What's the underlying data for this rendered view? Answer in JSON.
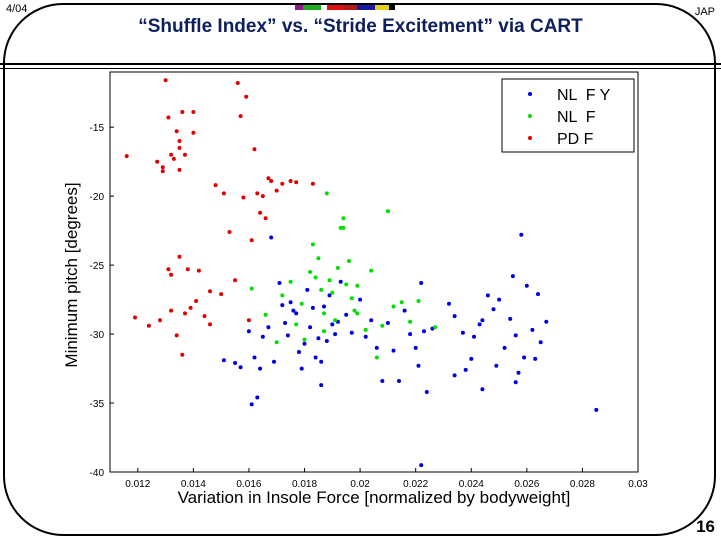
{
  "slide": {
    "date": "4/04",
    "author": "JAP",
    "title": "“Shuffle Index” vs. “Stride Excitement” via CART",
    "page_number": "16",
    "accent_colors": [
      "#8e1a8e",
      "#1faa1f",
      "#ffffff",
      "#e01010",
      "#b01a1a",
      "#1a1aa0",
      "#e8d010",
      "#000000"
    ]
  },
  "chart_data": {
    "type": "scatter",
    "xlabel": "Variation in Insole Force [normalized by bodyweight]",
    "ylabel": "Minimum pitch [degrees]",
    "xlim": [
      0.011,
      0.03
    ],
    "ylim": [
      -40,
      -11
    ],
    "xticks": [
      "0.012",
      "0.014",
      "0.016",
      "0.018",
      "0.02",
      "0.022",
      "0.024",
      "0.026",
      "0.028",
      "0.03"
    ],
    "yticks": [
      "-15",
      "-20",
      "-25",
      "-30",
      "-35",
      "-40"
    ],
    "grid": false,
    "legend_position": "top-right",
    "series": [
      {
        "name": "NL  F Y",
        "color": "#0000e0",
        "points": [
          [
            0.0151,
            -31.9
          ],
          [
            0.0155,
            -32.1
          ],
          [
            0.0157,
            -32.4
          ],
          [
            0.016,
            -29.8
          ],
          [
            0.0162,
            -31.7
          ],
          [
            0.0163,
            -34.6
          ],
          [
            0.0161,
            -35.1
          ],
          [
            0.0164,
            -32.5
          ],
          [
            0.0165,
            -30.2
          ],
          [
            0.0167,
            -29.5
          ],
          [
            0.0168,
            -23.0
          ],
          [
            0.0169,
            -32.0
          ],
          [
            0.0171,
            -26.3
          ],
          [
            0.0172,
            -27.9
          ],
          [
            0.0173,
            -29.2
          ],
          [
            0.0174,
            -30.1
          ],
          [
            0.0175,
            -27.7
          ],
          [
            0.0176,
            -28.3
          ],
          [
            0.0177,
            -28.5
          ],
          [
            0.0178,
            -31.3
          ],
          [
            0.0179,
            -32.5
          ],
          [
            0.018,
            -30.7
          ],
          [
            0.0181,
            -26.8
          ],
          [
            0.0182,
            -29.5
          ],
          [
            0.0183,
            -28.1
          ],
          [
            0.0184,
            -31.7
          ],
          [
            0.0185,
            -30.3
          ],
          [
            0.0186,
            -33.7
          ],
          [
            0.0187,
            -28.0
          ],
          [
            0.0188,
            -30.5
          ],
          [
            0.0189,
            -27.2
          ],
          [
            0.019,
            -29.3
          ],
          [
            0.0191,
            -30.0
          ],
          [
            0.0193,
            -26.2
          ],
          [
            0.0195,
            -28.6
          ],
          [
            0.0197,
            -29.9
          ],
          [
            0.02,
            -27.5
          ],
          [
            0.0202,
            -30.2
          ],
          [
            0.0204,
            -29.0
          ],
          [
            0.0206,
            -31.0
          ],
          [
            0.0208,
            -33.4
          ],
          [
            0.021,
            -29.2
          ],
          [
            0.0212,
            -31.2
          ],
          [
            0.0214,
            -33.4
          ],
          [
            0.0216,
            -28.3
          ],
          [
            0.0218,
            -30.0
          ],
          [
            0.022,
            -31.0
          ],
          [
            0.0221,
            -32.3
          ],
          [
            0.0222,
            -39.5
          ],
          [
            0.0223,
            -29.8
          ],
          [
            0.0224,
            -34.2
          ],
          [
            0.0226,
            -29.6
          ],
          [
            0.0222,
            -26.3
          ],
          [
            0.0232,
            -27.8
          ],
          [
            0.0234,
            -28.7
          ],
          [
            0.0237,
            -29.9
          ],
          [
            0.0238,
            -32.6
          ],
          [
            0.024,
            -31.8
          ],
          [
            0.0241,
            -30.2
          ],
          [
            0.0243,
            -29.3
          ],
          [
            0.0244,
            -34.0
          ],
          [
            0.0246,
            -27.2
          ],
          [
            0.0248,
            -28.2
          ],
          [
            0.0249,
            -32.3
          ],
          [
            0.025,
            -27.5
          ],
          [
            0.0252,
            -31.0
          ],
          [
            0.0254,
            -28.9
          ],
          [
            0.0255,
            -25.8
          ],
          [
            0.0256,
            -30.1
          ],
          [
            0.0257,
            -32.8
          ],
          [
            0.0258,
            -22.8
          ],
          [
            0.0259,
            -31.7
          ],
          [
            0.026,
            -26.5
          ],
          [
            0.0262,
            -29.7
          ],
          [
            0.0263,
            -31.8
          ],
          [
            0.0264,
            -27.1
          ],
          [
            0.0265,
            -30.6
          ],
          [
            0.0267,
            -29.1
          ],
          [
            0.0285,
            -35.5
          ],
          [
            0.0256,
            -33.5
          ],
          [
            0.0186,
            -32.0
          ],
          [
            0.0192,
            -29.1
          ],
          [
            0.0234,
            -33.0
          ],
          [
            0.0244,
            -29.0
          ]
        ]
      },
      {
        "name": "NL  F",
        "color": "#00e000",
        "points": [
          [
            0.0161,
            -26.7
          ],
          [
            0.0166,
            -28.6
          ],
          [
            0.017,
            -30.6
          ],
          [
            0.0172,
            -27.2
          ],
          [
            0.0175,
            -26.2
          ],
          [
            0.0177,
            -29.3
          ],
          [
            0.0179,
            -27.8
          ],
          [
            0.018,
            -30.4
          ],
          [
            0.0182,
            -25.5
          ],
          [
            0.0183,
            -23.5
          ],
          [
            0.0184,
            -25.9
          ],
          [
            0.0185,
            -24.5
          ],
          [
            0.0186,
            -26.8
          ],
          [
            0.0187,
            -28.5
          ],
          [
            0.0188,
            -19.8
          ],
          [
            0.0189,
            -26.1
          ],
          [
            0.019,
            -27.0
          ],
          [
            0.0191,
            -29.0
          ],
          [
            0.0192,
            -25.2
          ],
          [
            0.0193,
            -22.3
          ],
          [
            0.0194,
            -21.6
          ],
          [
            0.0195,
            -26.4
          ],
          [
            0.0196,
            -24.7
          ],
          [
            0.0197,
            -27.4
          ],
          [
            0.0198,
            -28.3
          ],
          [
            0.0199,
            -26.5
          ],
          [
            0.0202,
            -29.7
          ],
          [
            0.0204,
            -25.4
          ],
          [
            0.0206,
            -31.7
          ],
          [
            0.0208,
            -29.4
          ],
          [
            0.021,
            -21.1
          ],
          [
            0.0212,
            -28.0
          ],
          [
            0.0215,
            -27.7
          ],
          [
            0.0218,
            -29.1
          ],
          [
            0.0221,
            -27.6
          ],
          [
            0.0227,
            -29.5
          ],
          [
            0.0194,
            -22.3
          ],
          [
            0.0199,
            -28.5
          ],
          [
            0.0187,
            -29.8
          ]
        ]
      },
      {
        "name": "PD F",
        "color": "#e00000",
        "points": [
          [
            0.0116,
            -17.1
          ],
          [
            0.0119,
            -28.8
          ],
          [
            0.0124,
            -29.4
          ],
          [
            0.0127,
            -17.5
          ],
          [
            0.0128,
            -29.0
          ],
          [
            0.0129,
            -17.9
          ],
          [
            0.013,
            -11.6
          ],
          [
            0.0131,
            -14.3
          ],
          [
            0.0131,
            -25.3
          ],
          [
            0.0132,
            -28.3
          ],
          [
            0.0133,
            -17.3
          ],
          [
            0.0134,
            -15.3
          ],
          [
            0.0135,
            -16.5
          ],
          [
            0.0135,
            -24.4
          ],
          [
            0.0136,
            -13.9
          ],
          [
            0.0136,
            -31.5
          ],
          [
            0.0137,
            -17.0
          ],
          [
            0.0138,
            -25.3
          ],
          [
            0.0139,
            -28.1
          ],
          [
            0.014,
            -15.4
          ],
          [
            0.0141,
            -27.6
          ],
          [
            0.0142,
            -25.4
          ],
          [
            0.0144,
            -28.7
          ],
          [
            0.0146,
            -26.9
          ],
          [
            0.0148,
            -19.2
          ],
          [
            0.015,
            -27.1
          ],
          [
            0.0151,
            -19.8
          ],
          [
            0.0153,
            -22.6
          ],
          [
            0.0155,
            -26.1
          ],
          [
            0.0156,
            -11.8
          ],
          [
            0.0157,
            -14.2
          ],
          [
            0.0158,
            -20.1
          ],
          [
            0.0159,
            -12.8
          ],
          [
            0.016,
            -29.0
          ],
          [
            0.0161,
            -23.2
          ],
          [
            0.0162,
            -16.6
          ],
          [
            0.0163,
            -19.8
          ],
          [
            0.0164,
            -21.2
          ],
          [
            0.0165,
            -20.0
          ],
          [
            0.0166,
            -21.6
          ],
          [
            0.0167,
            -18.7
          ],
          [
            0.0168,
            -18.9
          ],
          [
            0.017,
            -19.6
          ],
          [
            0.0172,
            -19.1
          ],
          [
            0.0175,
            -18.9
          ],
          [
            0.0177,
            -19.0
          ],
          [
            0.0183,
            -19.1
          ],
          [
            0.0135,
            -18.1
          ],
          [
            0.0132,
            -17.0
          ],
          [
            0.0134,
            -30.1
          ],
          [
            0.0146,
            -29.3
          ],
          [
            0.0129,
            -18.2
          ],
          [
            0.014,
            -13.9
          ],
          [
            0.0135,
            -16.0
          ],
          [
            0.0132,
            -25.7
          ],
          [
            0.0137,
            -28.5
          ]
        ]
      }
    ]
  }
}
